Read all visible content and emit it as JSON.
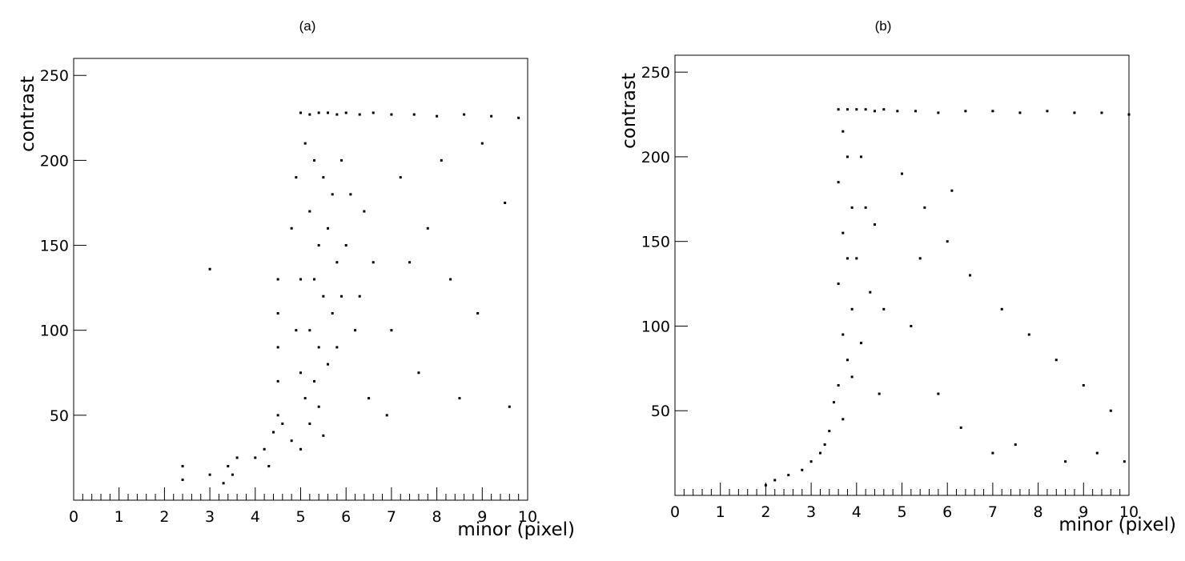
{
  "chart_data": [
    {
      "type": "scatter",
      "title": "(a)",
      "x_label": "minor (pixel)",
      "y_label": "contrast",
      "color": "#000000",
      "xlim": [
        0,
        10
      ],
      "ylim": [
        0,
        260
      ],
      "xticks": [
        0,
        1,
        2,
        3,
        4,
        5,
        6,
        7,
        8,
        9,
        10
      ],
      "yticks": [
        50,
        100,
        150,
        200,
        250
      ],
      "x": [
        5.0,
        5.2,
        5.4,
        5.6,
        5.8,
        6.0,
        6.3,
        6.6,
        7.0,
        7.5,
        8.0,
        8.6,
        9.2,
        9.8,
        5.1,
        5.3,
        5.5,
        5.7,
        5.2,
        5.6,
        5.4,
        5.8,
        5.3,
        5.5,
        5.7,
        5.2,
        5.4,
        5.6,
        5.3,
        5.1,
        5.4,
        5.2,
        5.5,
        5.9,
        6.1,
        6.0,
        5.9,
        6.2,
        5.8,
        4.9,
        4.8,
        5.0,
        4.9,
        5.0,
        6.4,
        6.6,
        6.3,
        7.2,
        7.8,
        8.3,
        8.9,
        9.5,
        7.0,
        7.6,
        8.5,
        9.6,
        6.9,
        6.5,
        7.4,
        8.1,
        9.0,
        4.5,
        4.5,
        4.5,
        4.5,
        4.5,
        4.4,
        4.6,
        4.2,
        4.0,
        3.6,
        3.5,
        3.4,
        3.3,
        3.0,
        2.4,
        2.4,
        4.3,
        4.8,
        5.0,
        3.0
      ],
      "values": [
        228,
        227,
        228,
        228,
        227,
        228,
        227,
        228,
        227,
        227,
        226,
        227,
        226,
        225,
        210,
        200,
        190,
        180,
        170,
        160,
        150,
        140,
        130,
        120,
        110,
        100,
        90,
        80,
        70,
        60,
        55,
        45,
        38,
        200,
        180,
        150,
        120,
        100,
        90,
        190,
        160,
        130,
        100,
        75,
        170,
        140,
        120,
        190,
        160,
        130,
        110,
        175,
        100,
        75,
        60,
        55,
        50,
        60,
        140,
        200,
        210,
        130,
        110,
        90,
        70,
        50,
        40,
        45,
        30,
        25,
        25,
        15,
        20,
        10,
        15,
        20,
        12,
        20,
        35,
        30,
        136
      ]
    },
    {
      "type": "scatter",
      "title": "(b)",
      "x_label": "minor (pixel)",
      "y_label": "contrast",
      "color": "#000000",
      "xlim": [
        0,
        10
      ],
      "ylim": [
        0,
        260
      ],
      "xticks": [
        0,
        1,
        2,
        3,
        4,
        5,
        6,
        7,
        8,
        9,
        10
      ],
      "yticks": [
        50,
        100,
        150,
        200,
        250
      ],
      "x": [
        3.6,
        3.8,
        4.0,
        4.2,
        4.4,
        4.6,
        4.9,
        5.3,
        5.8,
        6.4,
        7.0,
        7.6,
        8.2,
        8.8,
        9.4,
        10.0,
        3.7,
        3.8,
        3.6,
        3.9,
        3.7,
        3.8,
        3.6,
        3.9,
        3.7,
        3.8,
        3.6,
        3.5,
        3.7,
        3.4,
        3.3,
        3.2,
        3.0,
        2.8,
        2.5,
        2.2,
        2.0,
        4.1,
        4.2,
        4.0,
        4.3,
        4.1,
        3.9,
        4.4,
        4.6,
        4.5,
        5.0,
        5.5,
        6.0,
        6.5,
        7.2,
        7.8,
        8.4,
        9.0,
        9.6,
        5.2,
        5.8,
        6.3,
        7.0,
        7.5,
        8.6,
        9.3,
        9.9,
        5.4,
        6.1
      ],
      "values": [
        228,
        228,
        228,
        228,
        227,
        228,
        227,
        227,
        226,
        227,
        227,
        226,
        227,
        226,
        226,
        225,
        215,
        200,
        185,
        170,
        155,
        140,
        125,
        110,
        95,
        80,
        65,
        55,
        45,
        38,
        30,
        25,
        20,
        15,
        12,
        9,
        6,
        200,
        170,
        140,
        120,
        90,
        70,
        160,
        110,
        60,
        190,
        170,
        150,
        130,
        110,
        95,
        80,
        65,
        50,
        100,
        60,
        40,
        25,
        30,
        20,
        25,
        20,
        140,
        180
      ]
    }
  ]
}
